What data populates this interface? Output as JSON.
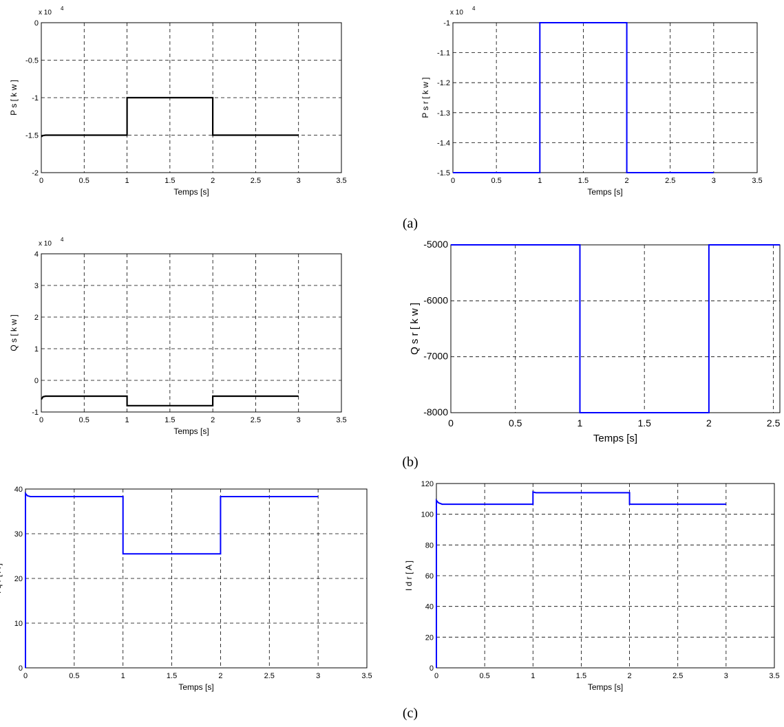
{
  "captions": {
    "a": "(a)",
    "b": "(b)",
    "c": "(c)"
  },
  "colors": {
    "black_series": "#000000",
    "blue_series": "#0000ff",
    "grid": "#000000"
  },
  "chart_data": [
    {
      "type": "line",
      "id": "ps",
      "xlabel": "Temps [s]",
      "ylabel": "P s  [ k w ]",
      "exponent_label": "x 10",
      "exponent_power": "4",
      "xlim": [
        0,
        3.5
      ],
      "ylim": [
        -20000,
        0
      ],
      "xticks": [
        "0",
        "0.5",
        "1",
        "1.5",
        "2",
        "2.5",
        "3",
        "3.5"
      ],
      "yticks": [
        "0",
        "-0.5",
        "-1",
        "-1.5",
        "-2"
      ],
      "grid": true,
      "series": [
        {
          "color": "#000000",
          "x": [
            0,
            0.02,
            0.05,
            1,
            1,
            2,
            2,
            3
          ],
          "y": [
            -15200,
            -15050,
            -15000,
            -15000,
            -10000,
            -10000,
            -15000,
            -15000
          ]
        }
      ]
    },
    {
      "type": "line",
      "id": "psr",
      "xlabel": "Temps [s]",
      "ylabel": "P s r  [ k w ]",
      "exponent_label": "x 10",
      "exponent_power": "4",
      "xlim": [
        0,
        3.5
      ],
      "ylim": [
        -15000,
        -10000
      ],
      "xticks": [
        "0",
        "0.5",
        "1",
        "1.5",
        "2",
        "2.5",
        "3",
        "3.5"
      ],
      "yticks": [
        "-1",
        "-1.1",
        "-1.2",
        "-1.3",
        "-1.4",
        "-1.5"
      ],
      "grid": true,
      "series": [
        {
          "color": "#0000ff",
          "x": [
            0,
            1,
            1,
            2,
            2,
            3
          ],
          "y": [
            -15000,
            -15000,
            -10000,
            -10000,
            -15000,
            -15000
          ]
        }
      ]
    },
    {
      "type": "line",
      "id": "qs",
      "xlabel": "Temps [s]",
      "ylabel": "Q s  [ k w ]",
      "exponent_label": "x 10",
      "exponent_power": "4",
      "xlim": [
        0,
        3.5
      ],
      "ylim": [
        -10000,
        40000
      ],
      "xticks": [
        "0",
        "0.5",
        "1",
        "1.5",
        "2",
        "2.5",
        "3",
        "3.5"
      ],
      "yticks": [
        "4",
        "3",
        "2",
        "1",
        "0",
        "-1"
      ],
      "grid": true,
      "series": [
        {
          "color": "#000000",
          "x": [
            0,
            0.02,
            0.05,
            1,
            1,
            2,
            2,
            3
          ],
          "y": [
            -6000,
            -5200,
            -5000,
            -5000,
            -8000,
            -8000,
            -5000,
            -5000
          ]
        }
      ]
    },
    {
      "type": "line",
      "id": "qsr",
      "xlabel": "Temps [s]",
      "ylabel": "Q s r  [ k w ]",
      "xlim": [
        0,
        2.55
      ],
      "ylim": [
        -8000,
        -5000
      ],
      "xticks": [
        "0",
        "0.5",
        "1",
        "1.5",
        "2",
        "2.5"
      ],
      "yticks": [
        "-5000",
        "-6000",
        "-7000",
        "-8000"
      ],
      "grid": true,
      "series": [
        {
          "color": "#0000ff",
          "x": [
            0,
            1,
            1,
            2,
            2,
            2.55
          ],
          "y": [
            -5000,
            -5000,
            -8000,
            -8000,
            -5000,
            -5000
          ]
        }
      ]
    },
    {
      "type": "line",
      "id": "iqr",
      "xlabel": "Temps [s]",
      "ylabel": "I q r  [ A ]",
      "xlim": [
        0,
        3.5
      ],
      "ylim": [
        0,
        40
      ],
      "xticks": [
        "0",
        "0.5",
        "1",
        "1.5",
        "2",
        "2.5",
        "3",
        "3.5"
      ],
      "yticks": [
        "40",
        "30",
        "20",
        "10",
        "0"
      ],
      "grid": true,
      "series": [
        {
          "color": "#0000ff",
          "x": [
            0,
            0,
            0.02,
            0.05,
            1,
            1,
            2,
            2,
            3
          ],
          "y": [
            0,
            39,
            38.5,
            38.3,
            38.3,
            25.5,
            25.5,
            38.3,
            38.3
          ]
        }
      ]
    },
    {
      "type": "line",
      "id": "idr",
      "xlabel": "Temps [s]",
      "ylabel": "I d r  [ A ]",
      "xlim": [
        0,
        3.5
      ],
      "ylim": [
        0,
        120
      ],
      "xticks": [
        "0",
        "0.5",
        "1",
        "1.5",
        "2",
        "2.5",
        "3",
        "3.5"
      ],
      "yticks": [
        "120",
        "100",
        "80",
        "60",
        "40",
        "20",
        "0"
      ],
      "grid": true,
      "series": [
        {
          "color": "#0000ff",
          "x": [
            0,
            0,
            0.02,
            0.06,
            1,
            1,
            1.03,
            2,
            2,
            3
          ],
          "y": [
            0,
            109,
            107.5,
            106.5,
            106.5,
            114.5,
            114,
            114,
            106.5,
            106.5
          ]
        }
      ]
    }
  ]
}
